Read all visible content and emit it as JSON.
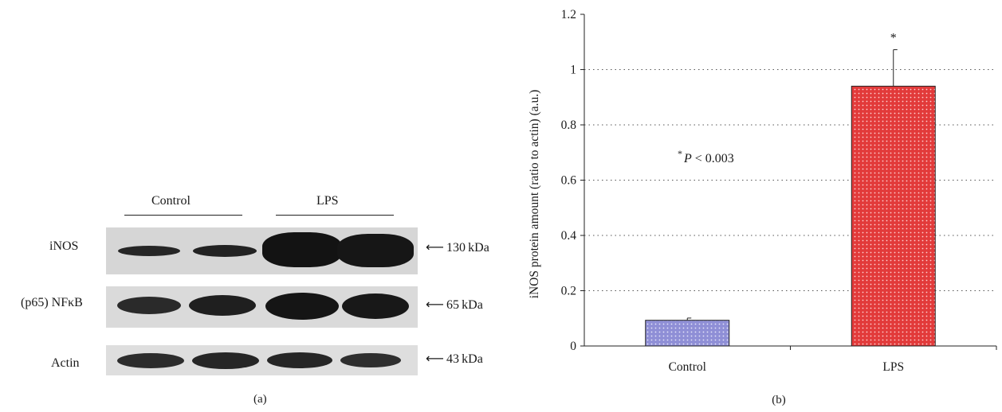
{
  "panel_a": {
    "groups": [
      {
        "label": "Control"
      },
      {
        "label": "LPS"
      }
    ],
    "rows": [
      {
        "label": "iNOS",
        "marker": "130 kDa"
      },
      {
        "label": "(p65) NFκB",
        "marker": "65 kDa"
      },
      {
        "label": "Actin",
        "marker": "43 kDa"
      }
    ],
    "arrow_glyph": "⟵",
    "caption": "(a)"
  },
  "panel_b": {
    "caption": "(b)",
    "significance_note_star": "*",
    "significance_note_p": "P",
    "significance_note_rest": " < 0.003"
  },
  "chart_data": {
    "type": "bar",
    "categories": [
      "Control",
      "LPS"
    ],
    "series": [
      {
        "values": [
          0.093,
          0.94
        ],
        "errors": [
          0.008,
          0.132
        ]
      }
    ],
    "bar_colors": [
      "#8f8fd6",
      "#e23a3a"
    ],
    "significance_marks": [
      "",
      "*"
    ],
    "xlabel": "",
    "ylabel": "iNOS protein amount (ratio to actin) (a.u.)",
    "ylim": [
      0,
      1.2
    ],
    "yticks": [
      0,
      0.2,
      0.4,
      0.6,
      0.8,
      1,
      1.2
    ],
    "ytick_labels": [
      "0",
      "0.2",
      "0.4",
      "0.6",
      "0.8",
      "1",
      "1.2"
    ],
    "grid": "horizontal-dotted",
    "legend": "none"
  }
}
